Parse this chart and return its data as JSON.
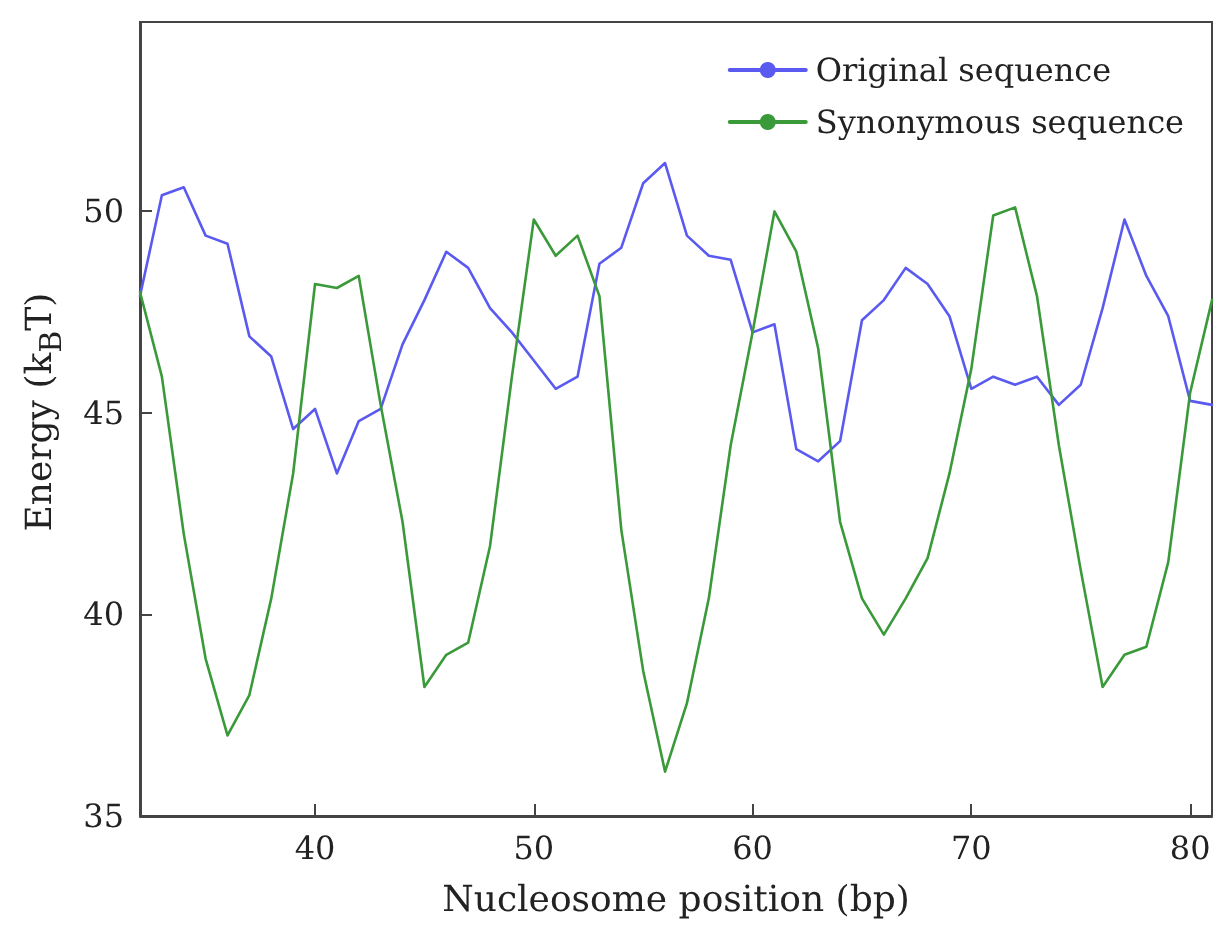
{
  "chart_data": {
    "type": "line",
    "xlabel": "Nucleosome position (bp)",
    "ylabel": "Energy (k$_{B}$T)",
    "x": [
      32,
      33,
      34,
      35,
      36,
      37,
      38,
      39,
      40,
      41,
      42,
      43,
      44,
      45,
      46,
      47,
      48,
      49,
      50,
      51,
      52,
      53,
      54,
      55,
      56,
      57,
      58,
      59,
      60,
      61,
      62,
      63,
      64,
      65,
      66,
      67,
      68,
      69,
      70,
      71,
      72,
      73,
      74,
      75,
      76,
      77,
      78,
      79,
      80,
      81
    ],
    "series": [
      {
        "name": "Original sequence",
        "color": "#5a5af0",
        "values": [
          47.9,
          50.4,
          50.6,
          49.4,
          49.2,
          46.9,
          46.4,
          44.6,
          45.1,
          43.5,
          44.8,
          45.1,
          46.7,
          47.8,
          49.0,
          48.6,
          47.6,
          47.0,
          46.3,
          45.6,
          45.9,
          48.7,
          49.1,
          50.7,
          51.2,
          49.4,
          48.9,
          48.8,
          47.0,
          47.2,
          44.1,
          43.8,
          44.3,
          47.3,
          47.8,
          48.6,
          48.2,
          47.4,
          45.6,
          45.9,
          45.7,
          45.9,
          45.2,
          45.7,
          47.6,
          49.8,
          48.4,
          47.4,
          45.3,
          45.2
        ]
      },
      {
        "name": "Synonymous sequence",
        "color": "#3a9a3a",
        "values": [
          48.0,
          45.9,
          42.0,
          38.9,
          37.0,
          38.0,
          40.4,
          43.5,
          48.2,
          48.1,
          48.4,
          45.2,
          42.3,
          38.2,
          39.0,
          39.3,
          41.7,
          45.9,
          49.8,
          48.9,
          49.4,
          47.9,
          42.1,
          38.6,
          36.1,
          37.8,
          40.4,
          44.2,
          47.0,
          50.0,
          49.0,
          46.6,
          42.3,
          40.4,
          39.5,
          40.4,
          41.4,
          43.5,
          46.1,
          49.9,
          50.1,
          47.9,
          44.2,
          41.1,
          38.2,
          39.0,
          39.2,
          41.3,
          45.5,
          47.8
        ]
      }
    ],
    "xlim": [
      32,
      81
    ],
    "xticks": [
      40,
      50,
      60,
      70,
      80
    ],
    "ylim": [
      35,
      54.7
    ],
    "yticks": [
      35,
      40,
      45,
      50
    ],
    "grid": false,
    "legend": "top right",
    "marker": "none",
    "line_style": "solid"
  }
}
